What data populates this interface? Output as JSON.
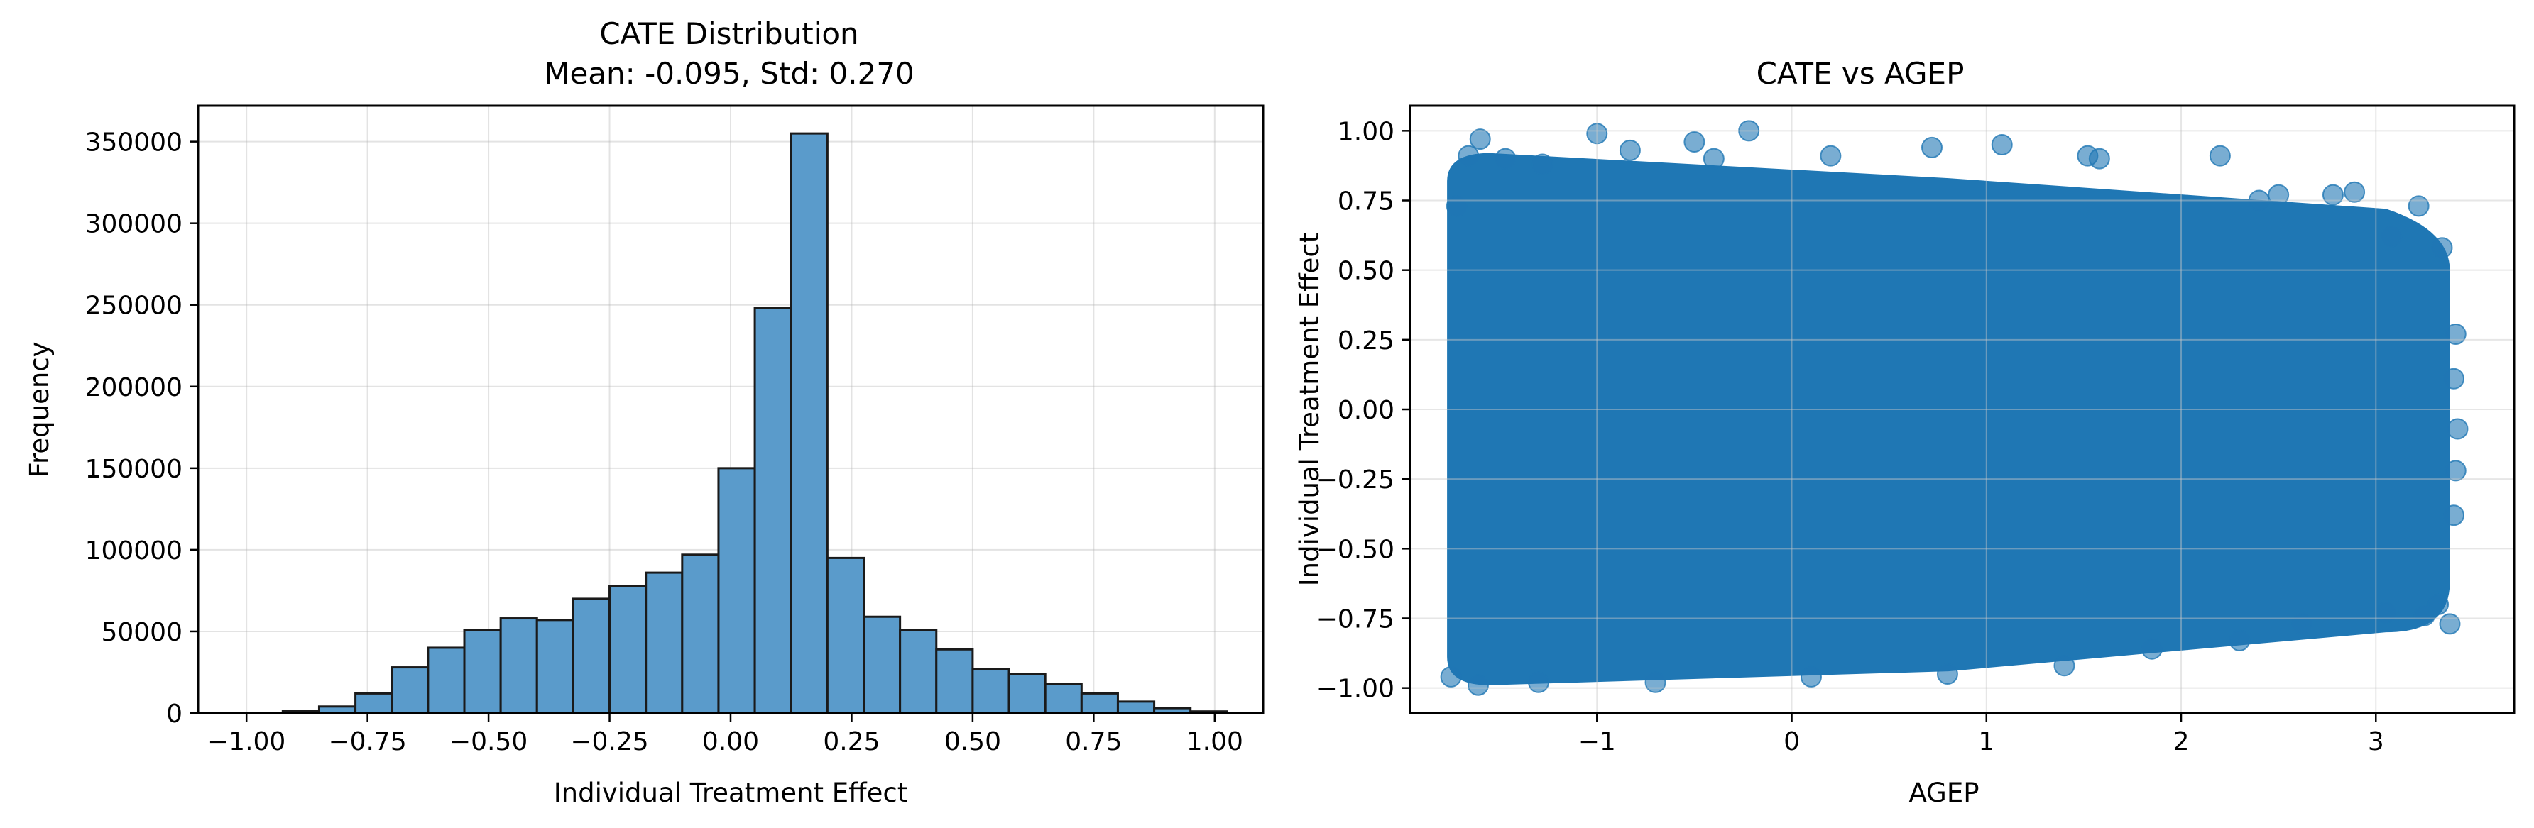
{
  "chart_data": [
    {
      "type": "bar",
      "title_line1": "CATE Distribution",
      "title_line2": "Mean: -0.095, Std: 0.270",
      "xlabel": "Individual Treatment Effect",
      "ylabel": "Frequency",
      "xlim": [
        -1.1,
        1.1
      ],
      "ylim": [
        0,
        372000
      ],
      "xticks": [
        "−1.00",
        "−0.75",
        "−0.50",
        "−0.25",
        "0.00",
        "0.25",
        "0.50",
        "0.75",
        "1.00"
      ],
      "xtick_values": [
        -1.0,
        -0.75,
        -0.5,
        -0.25,
        0.0,
        0.25,
        0.5,
        0.75,
        1.0
      ],
      "yticks": [
        "0",
        "50000",
        "100000",
        "150000",
        "200000",
        "250000",
        "300000",
        "350000"
      ],
      "ytick_values": [
        0,
        50000,
        100000,
        150000,
        200000,
        250000,
        300000,
        350000
      ],
      "grid": true,
      "bar_color": "#5a9bcb",
      "edge_color": "#1a1a1a",
      "bins": [
        {
          "x0": -1.0,
          "x1": -0.925,
          "value": 100
        },
        {
          "x0": -0.925,
          "x1": -0.85,
          "value": 1500
        },
        {
          "x0": -0.85,
          "x1": -0.775,
          "value": 4000
        },
        {
          "x0": -0.775,
          "x1": -0.7,
          "value": 12000
        },
        {
          "x0": -0.7,
          "x1": -0.625,
          "value": 28000
        },
        {
          "x0": -0.625,
          "x1": -0.55,
          "value": 40000
        },
        {
          "x0": -0.55,
          "x1": -0.475,
          "value": 51000
        },
        {
          "x0": -0.475,
          "x1": -0.4,
          "value": 58000
        },
        {
          "x0": -0.4,
          "x1": -0.325,
          "value": 57000
        },
        {
          "x0": -0.325,
          "x1": -0.25,
          "value": 70000
        },
        {
          "x0": -0.25,
          "x1": -0.175,
          "value": 78000
        },
        {
          "x0": -0.175,
          "x1": -0.1,
          "value": 86000
        },
        {
          "x0": -0.1,
          "x1": -0.025,
          "value": 97000
        },
        {
          "x0": -0.025,
          "x1": 0.05,
          "value": 150000
        },
        {
          "x0": 0.05,
          "x1": 0.125,
          "value": 248000
        },
        {
          "x0": 0.125,
          "x1": 0.2,
          "value": 355000
        },
        {
          "x0": 0.2,
          "x1": 0.275,
          "value": 95000
        },
        {
          "x0": 0.275,
          "x1": 0.35,
          "value": 59000
        },
        {
          "x0": 0.35,
          "x1": 0.425,
          "value": 51000
        },
        {
          "x0": 0.425,
          "x1": 0.5,
          "value": 39000
        },
        {
          "x0": 0.5,
          "x1": 0.575,
          "value": 27000
        },
        {
          "x0": 0.575,
          "x1": 0.65,
          "value": 24000
        },
        {
          "x0": 0.65,
          "x1": 0.725,
          "value": 18000
        },
        {
          "x0": 0.725,
          "x1": 0.8,
          "value": 12000
        },
        {
          "x0": 0.8,
          "x1": 0.875,
          "value": 7000
        },
        {
          "x0": 0.875,
          "x1": 0.95,
          "value": 3000
        },
        {
          "x0": 0.95,
          "x1": 1.025,
          "value": 1000
        }
      ]
    },
    {
      "type": "scatter",
      "title": "CATE vs AGEP",
      "xlabel": "AGEP",
      "ylabel": "Individual Treatment Effect",
      "xlim": [
        -1.96,
        3.71
      ],
      "ylim": [
        -1.09,
        1.09
      ],
      "xticks": [
        "−1",
        "0",
        "1",
        "2",
        "3"
      ],
      "xtick_values": [
        -1,
        0,
        1,
        2,
        3
      ],
      "yticks": [
        "−1.00",
        "−0.75",
        "−0.50",
        "−0.25",
        "0.00",
        "0.25",
        "0.50",
        "0.75",
        "1.00"
      ],
      "ytick_values": [
        -1.0,
        -0.75,
        -0.5,
        -0.25,
        0.0,
        0.25,
        0.5,
        0.75,
        1.0
      ],
      "grid": true,
      "point_color": "#1f77b4",
      "point_alpha": 0.6,
      "dense_region": {
        "x_min": -1.77,
        "x_max": 3.38,
        "y_min": -1.0,
        "y_max": 1.0
      },
      "outliers": [
        [
          -1.6,
          0.97
        ],
        [
          -1.66,
          0.91
        ],
        [
          -1.72,
          0.73
        ],
        [
          -1.47,
          0.9
        ],
        [
          -1.28,
          0.88
        ],
        [
          -1.0,
          0.99
        ],
        [
          -0.83,
          0.93
        ],
        [
          -0.5,
          0.96
        ],
        [
          -0.22,
          1.0
        ],
        [
          -0.4,
          0.9
        ],
        [
          0.2,
          0.91
        ],
        [
          0.72,
          0.94
        ],
        [
          1.08,
          0.95
        ],
        [
          1.52,
          0.91
        ],
        [
          1.58,
          0.9
        ],
        [
          2.2,
          0.91
        ],
        [
          2.4,
          0.75
        ],
        [
          2.5,
          0.77
        ],
        [
          2.78,
          0.77
        ],
        [
          2.89,
          0.78
        ],
        [
          3.08,
          0.62
        ],
        [
          3.22,
          0.73
        ],
        [
          3.34,
          0.58
        ],
        [
          3.41,
          0.27
        ],
        [
          3.4,
          0.11
        ],
        [
          3.42,
          -0.07
        ],
        [
          3.41,
          -0.22
        ],
        [
          3.4,
          -0.38
        ],
        [
          3.32,
          -0.7
        ],
        [
          3.25,
          -0.74
        ],
        [
          3.38,
          -0.77
        ],
        [
          3.05,
          -0.73
        ],
        [
          2.62,
          -0.77
        ],
        [
          2.3,
          -0.83
        ],
        [
          1.85,
          -0.86
        ],
        [
          1.4,
          -0.92
        ],
        [
          0.8,
          -0.95
        ],
        [
          0.1,
          -0.96
        ],
        [
          -0.7,
          -0.98
        ],
        [
          -1.3,
          -0.98
        ],
        [
          -1.61,
          -0.99
        ],
        [
          -1.75,
          -0.96
        ]
      ]
    }
  ]
}
